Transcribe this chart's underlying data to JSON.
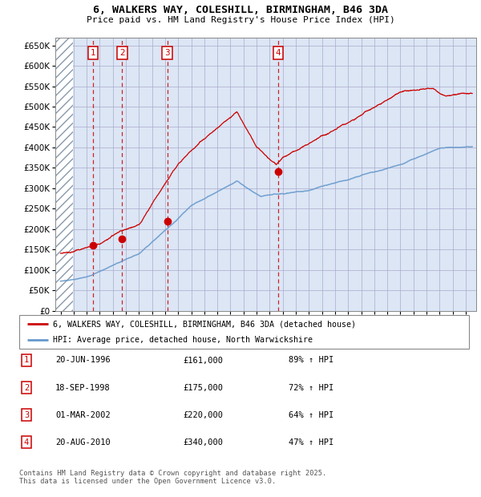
{
  "title_line1": "6, WALKERS WAY, COLESHILL, BIRMINGHAM, B46 3DA",
  "title_line2": "Price paid vs. HM Land Registry's House Price Index (HPI)",
  "ylim": [
    0,
    670000
  ],
  "yticks": [
    0,
    50000,
    100000,
    150000,
    200000,
    250000,
    300000,
    350000,
    400000,
    450000,
    500000,
    550000,
    600000,
    650000
  ],
  "xlim_start": 1993.6,
  "xlim_end": 2025.8,
  "legend_line1": "6, WALKERS WAY, COLESHILL, BIRMINGHAM, B46 3DA (detached house)",
  "legend_line2": "HPI: Average price, detached house, North Warwickshire",
  "sale_points": [
    {
      "num": 1,
      "year": 1996.47,
      "price": 161000
    },
    {
      "num": 2,
      "year": 1998.72,
      "price": 175000
    },
    {
      "num": 3,
      "year": 2002.17,
      "price": 220000
    },
    {
      "num": 4,
      "year": 2010.64,
      "price": 340000
    }
  ],
  "table_rows": [
    {
      "num": 1,
      "date": "20-JUN-1996",
      "price": "£161,000",
      "pct": "89% ↑ HPI"
    },
    {
      "num": 2,
      "date": "18-SEP-1998",
      "price": "£175,000",
      "pct": "72% ↑ HPI"
    },
    {
      "num": 3,
      "date": "01-MAR-2002",
      "price": "£220,000",
      "pct": "64% ↑ HPI"
    },
    {
      "num": 4,
      "date": "20-AUG-2010",
      "price": "£340,000",
      "pct": "47% ↑ HPI"
    }
  ],
  "footer_text": "Contains HM Land Registry data © Crown copyright and database right 2025.\nThis data is licensed under the Open Government Licence v3.0.",
  "red_color": "#cc0000",
  "blue_color": "#6699cc",
  "hatch_color": "#c8d4e8",
  "grid_color": "#aaaacc",
  "bg_color": "#dce6f5"
}
